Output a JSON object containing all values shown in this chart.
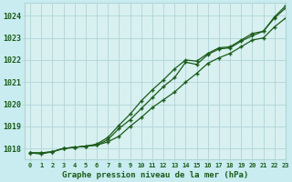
{
  "title": "Graphe pression niveau de la mer (hPa)",
  "background_color": "#c8ecf0",
  "plot_bg_color": "#d8f0f0",
  "grid_color": "#b0d4d8",
  "line_color": "#1a5c1a",
  "marker_color": "#1a5c1a",
  "xlim": [
    -0.5,
    23
  ],
  "ylim": [
    1017.5,
    1024.6
  ],
  "yticks": [
    1018,
    1019,
    1020,
    1021,
    1022,
    1023,
    1024
  ],
  "xtick_labels": [
    "0",
    "1",
    "2",
    "3",
    "4",
    "5",
    "6",
    "7",
    "8",
    "9",
    "10",
    "11",
    "12",
    "13",
    "14",
    "15",
    "16",
    "17",
    "18",
    "19",
    "20",
    "21",
    "22",
    "23"
  ],
  "series": [
    [
      1017.8,
      1017.8,
      1017.85,
      1018.0,
      1018.05,
      1018.1,
      1018.15,
      1018.3,
      1018.55,
      1019.0,
      1019.4,
      1019.85,
      1020.2,
      1020.55,
      1021.0,
      1021.4,
      1021.85,
      1022.1,
      1022.3,
      1022.6,
      1022.9,
      1023.0,
      1023.5,
      1023.9
    ],
    [
      1017.8,
      1017.75,
      1017.85,
      1018.0,
      1018.05,
      1018.1,
      1018.15,
      1018.4,
      1018.9,
      1019.3,
      1019.8,
      1020.3,
      1020.8,
      1021.2,
      1021.9,
      1021.8,
      1022.25,
      1022.5,
      1022.55,
      1022.85,
      1023.1,
      1023.3,
      1023.9,
      1024.35
    ],
    [
      1017.8,
      1017.8,
      1017.85,
      1018.0,
      1018.05,
      1018.1,
      1018.2,
      1018.5,
      1019.05,
      1019.55,
      1020.15,
      1020.65,
      1021.1,
      1021.6,
      1022.0,
      1021.95,
      1022.3,
      1022.55,
      1022.6,
      1022.9,
      1023.2,
      1023.3,
      1023.95,
      1024.45
    ]
  ]
}
